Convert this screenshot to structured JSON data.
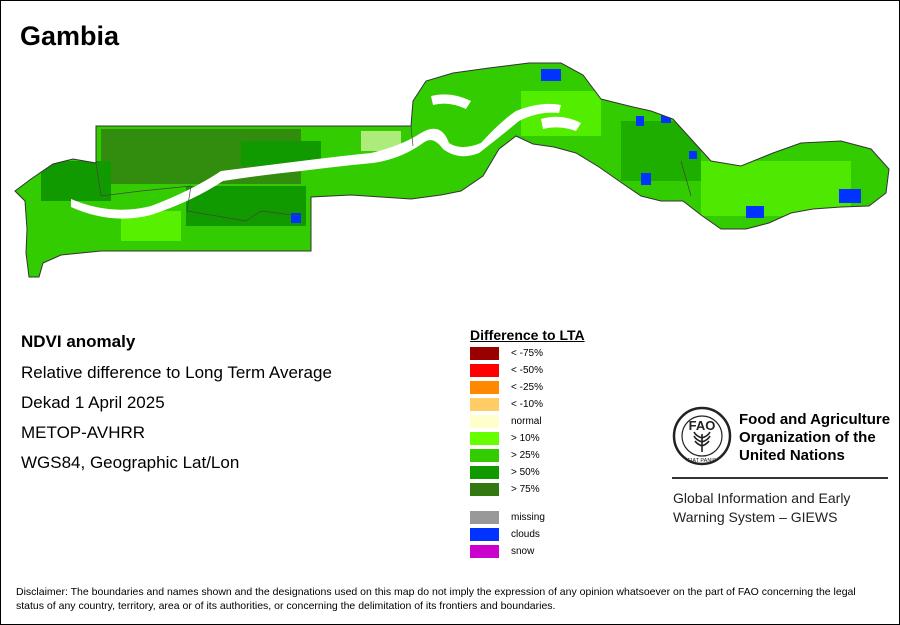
{
  "map": {
    "title": "Gambia",
    "info": {
      "heading": "NDVI anomaly",
      "line1": "Relative difference to Long Term Average",
      "line2": "Dekad 1 April 2025",
      "line3": "METOP-AVHRR",
      "line4": "WGS84, Geographic Lat/Lon"
    }
  },
  "legend": {
    "title": "Difference to LTA",
    "classes": [
      {
        "label": "< -75%",
        "color": "#990000"
      },
      {
        "label": "< -50%",
        "color": "#ff0000"
      },
      {
        "label": "< -25%",
        "color": "#ff8800"
      },
      {
        "label": "< -10%",
        "color": "#ffcc66"
      },
      {
        "label": "normal",
        "color": "#ffffcc"
      },
      {
        "label": "> 10%",
        "color": "#66ff00"
      },
      {
        "label": "> 25%",
        "color": "#33cc00"
      },
      {
        "label": "> 50%",
        "color": "#119900"
      },
      {
        "label": "> 75%",
        "color": "#337711"
      }
    ],
    "other": [
      {
        "label": "missing",
        "color": "#999999"
      },
      {
        "label": "clouds",
        "color": "#0033ff"
      },
      {
        "label": "snow",
        "color": "#cc00cc"
      }
    ]
  },
  "fao": {
    "name_line1": "Food and Agriculture",
    "name_line2": "Organization of the",
    "name_line3": "United Nations",
    "emblem_text": "FAO",
    "emblem_motto": "FIAT PANIS",
    "giews_line1": "Global Information and Early",
    "giews_line2": "Warning System – GIEWS"
  },
  "disclaimer": "Disclaimer: The boundaries and names shown and the designations used on this map do not imply the expression of any opinion whatsoever on the part of FAO concerning the legal status of any country, territory, area or of its authorities, or concerning the delimitation of its frontiers and boundaries."
}
